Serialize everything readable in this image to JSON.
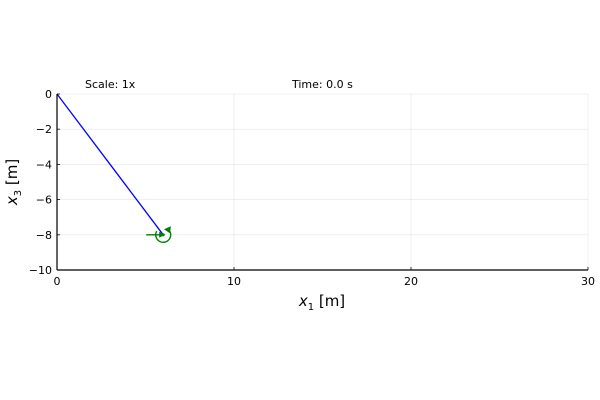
{
  "chart_data": {
    "type": "line",
    "title": "",
    "xlabel": {
      "base": "x",
      "sub": "1",
      "unit": " [m]"
    },
    "ylabel": {
      "base": "x",
      "sub": "3",
      "unit": " [m]"
    },
    "xlim": [
      0,
      30
    ],
    "ylim": [
      -10,
      0
    ],
    "xticks": [
      0,
      10,
      20,
      30
    ],
    "yticks": [
      0,
      -2,
      -4,
      -6,
      -8,
      -10
    ],
    "xtick_labels": [
      "0",
      "10",
      "20",
      "30"
    ],
    "ytick_labels": [
      "0",
      "−2",
      "−4",
      "−6",
      "−8",
      "−10"
    ],
    "grid": true,
    "legend": "none",
    "annotations": {
      "scale": "Scale: 1x",
      "time": "Time: 0.0 s"
    },
    "series": [
      {
        "color": "#0000ff",
        "x": [
          0,
          6
        ],
        "y": [
          0,
          -8
        ]
      }
    ],
    "marker": {
      "x": 6,
      "y": -8,
      "color": "#008000",
      "shape": "rotation-arrow-with-force-vector"
    }
  }
}
